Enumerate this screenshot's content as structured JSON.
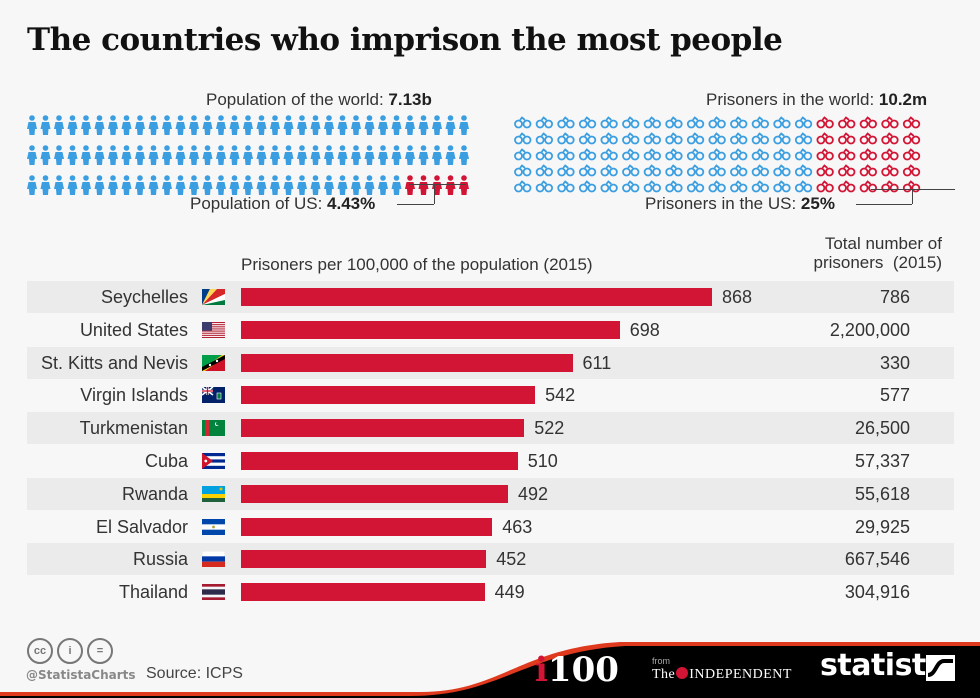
{
  "title": "The countries who imprison the most people",
  "population": {
    "world_label": "Population of the world:",
    "world_value": "7.13b",
    "us_label": "Population of US:",
    "us_value": "4.43%",
    "us_share_percent": 4.43,
    "icon": "person-icon",
    "icon_count": 99
  },
  "prisoners": {
    "world_label": "Prisoners in the world:",
    "world_value": "10.2m",
    "us_label": "Prisoners in the US:",
    "us_value": "25%",
    "us_share_percent": 25,
    "icon": "handcuffs-icon",
    "icon_count": 95
  },
  "colors": {
    "bar": "#d21435",
    "icon_blue": "#3a9ee0",
    "icon_red": "#d21435"
  },
  "chart_data": {
    "type": "bar",
    "orientation": "horizontal",
    "title": "Prisoners per 100,000 of the population (2015)",
    "categories": [
      "Seychelles",
      "United States",
      "St. Kitts and Nevis",
      "Virgin Islands",
      "Turkmenistan",
      "Cuba",
      "Rwanda",
      "El Salvador",
      "Russia",
      "Thailand"
    ],
    "values": [
      868,
      698,
      611,
      542,
      522,
      510,
      492,
      463,
      452,
      449
    ],
    "value_labels": [
      "868",
      "698",
      "611",
      "542",
      "522",
      "510",
      "492",
      "463",
      "452",
      "449"
    ],
    "totals_header_line1": "Total number of",
    "totals_header_line2": "prisoners  (2015)",
    "totals": [
      "786",
      "2,200,000",
      "330",
      "577",
      "26,500",
      "57,337",
      "55,618",
      "29,925",
      "667,546",
      "304,916"
    ],
    "flags": [
      "seychelles-flag",
      "us-flag",
      "st-kitts-flag",
      "virgin-islands-flag",
      "turkmenistan-flag",
      "cuba-flag",
      "rwanda-flag",
      "el-salvador-flag",
      "russia-flag",
      "thailand-flag"
    ],
    "xlim": [
      0,
      868
    ],
    "grid": false
  },
  "footer": {
    "handle": "@StatistaCharts",
    "source": "Source: ICPS",
    "i100": "100",
    "i100_i": "i",
    "from": "from",
    "independent_the": "The",
    "independent": "INDEPENDENT",
    "statista": "statista"
  }
}
